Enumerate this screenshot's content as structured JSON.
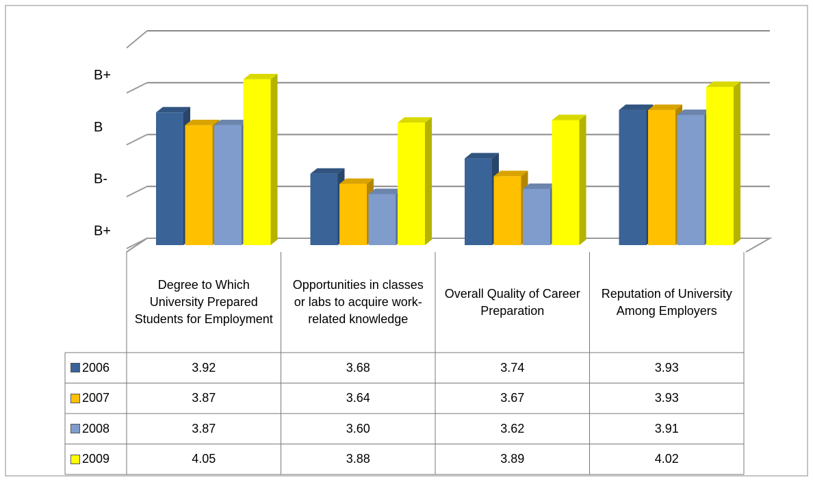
{
  "chart_data": {
    "type": "bar3d",
    "categories": [
      "Degree to Which University Prepared Students for Employment",
      "Opportunities in classes or labs to acquire work-related knowledge",
      "Overall Quality of Career Preparation",
      "Reputation of University Among Employers"
    ],
    "series": [
      {
        "name": "2006",
        "color": "#3a6397",
        "values": [
          3.92,
          3.68,
          3.74,
          3.93
        ],
        "value_labels": [
          "3.92",
          "3.68",
          "3.74",
          "3.93"
        ]
      },
      {
        "name": "2007",
        "color": "#ffc000",
        "values": [
          3.87,
          3.64,
          3.67,
          3.93
        ],
        "value_labels": [
          "3.87",
          "3.64",
          "3.67",
          "3.93"
        ]
      },
      {
        "name": "2008",
        "color": "#7f9ccc",
        "values": [
          3.87,
          3.6,
          3.62,
          3.91
        ],
        "value_labels": [
          "3.87",
          "3.60",
          "3.62",
          "3.91"
        ]
      },
      {
        "name": "2009",
        "color": "#ffff00",
        "values": [
          4.05,
          3.88,
          3.89,
          4.02
        ],
        "value_labels": [
          "4.05",
          "3.88",
          "3.89",
          "4.02"
        ]
      }
    ],
    "ylim": [
      3.4,
      4.2
    ],
    "yticks": [
      {
        "value": 3.4,
        "label": "B+"
      },
      {
        "value": 3.6,
        "label": "B-"
      },
      {
        "value": 3.8,
        "label": "B"
      },
      {
        "value": 4.0,
        "label": "B+"
      }
    ],
    "grid": true
  }
}
